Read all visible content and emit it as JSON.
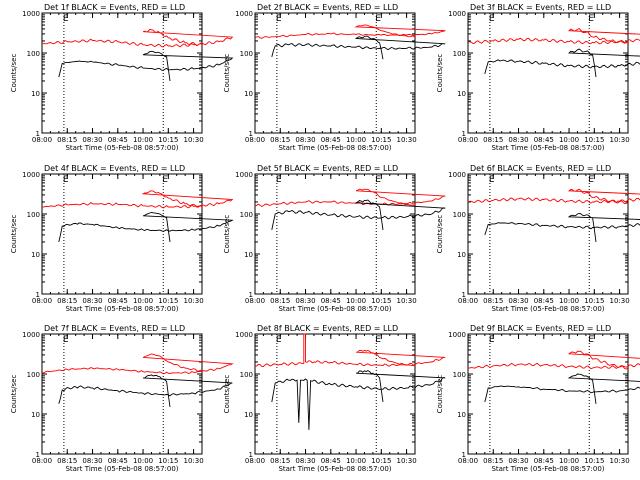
{
  "figure": {
    "background": "#ffffff",
    "axis_color": "#000000"
  },
  "chart_data": [
    {
      "type": "line",
      "title": "Det 1f BLACK = Events, RED = LLD",
      "xlabel": "Start Time (05-Feb-08 08:57:00)",
      "ylabel": "Counts/sec",
      "xlim": [
        "08:00",
        "10:35"
      ],
      "ylim": [
        1,
        1000
      ],
      "yscale": "log",
      "x_ticks": [
        "08:00",
        "08:15",
        "08:30",
        "08:45",
        "10:00",
        "10:15",
        "10:30"
      ],
      "y_ticks": [
        "1",
        "10",
        "100",
        "1000"
      ],
      "vlines": [
        "08:13",
        "10:12"
      ],
      "vline_labels": [
        "E",
        "E"
      ],
      "series": [
        {
          "name": "RED",
          "color": "#ff0000",
          "x": [
            "08:00",
            "08:15",
            "08:30",
            "08:45",
            "09:00",
            "09:15",
            "09:30",
            "09:45",
            "09:53",
            "10:00",
            "10:05",
            "10:10",
            "10:15",
            "10:25",
            "10:35"
          ],
          "values": [
            170,
            190,
            205,
            190,
            160,
            150,
            160,
            190,
            250,
            340,
            380,
            320,
            240,
            180,
            160
          ]
        },
        {
          "name": "BLACK",
          "color": "#000000",
          "x": [
            "08:10",
            "08:12",
            "08:20",
            "08:30",
            "08:45",
            "09:00",
            "09:15",
            "09:30",
            "09:45",
            "09:53",
            "10:00",
            "10:05",
            "10:10",
            "10:14",
            "10:16"
          ],
          "values": [
            25,
            55,
            62,
            60,
            50,
            42,
            38,
            40,
            50,
            75,
            90,
            110,
            100,
            80,
            20
          ]
        }
      ]
    },
    {
      "type": "line",
      "title": "Det 2f BLACK = Events, RED = LLD",
      "xlabel": "Start Time (05-Feb-08 08:57:00)",
      "ylabel": "Counts/sec",
      "xlim": [
        "08:00",
        "10:35"
      ],
      "ylim": [
        1,
        1000
      ],
      "yscale": "log",
      "x_ticks": [
        "08:00",
        "08:15",
        "08:30",
        "08:45",
        "10:00",
        "10:15",
        "10:30"
      ],
      "y_ticks": [
        "1",
        "10",
        "100",
        "1000"
      ],
      "vlines": [
        "08:13",
        "10:12"
      ],
      "vline_labels": [
        "E",
        "E"
      ],
      "series": [
        {
          "name": "RED",
          "color": "#ff0000",
          "x": [
            "08:00",
            "08:15",
            "08:30",
            "08:45",
            "09:00",
            "09:15",
            "09:30",
            "09:45",
            "09:53",
            "10:00",
            "10:05",
            "10:10",
            "10:15",
            "10:25",
            "10:35"
          ],
          "values": [
            240,
            260,
            290,
            300,
            290,
            280,
            280,
            300,
            360,
            450,
            500,
            450,
            360,
            280,
            250
          ]
        },
        {
          "name": "BLACK",
          "color": "#000000",
          "x": [
            "08:10",
            "08:12",
            "08:20",
            "08:30",
            "08:45",
            "09:00",
            "09:15",
            "09:30",
            "09:45",
            "09:53",
            "10:00",
            "10:05",
            "10:10",
            "10:14",
            "10:16"
          ],
          "values": [
            80,
            150,
            160,
            160,
            150,
            140,
            130,
            130,
            140,
            170,
            230,
            260,
            230,
            180,
            70
          ]
        }
      ]
    },
    {
      "type": "line",
      "title": "Det 3f BLACK = Events, RED = LLD",
      "xlabel": "Start Time (05-Feb-08 08:57:00)",
      "ylabel": "Counts/sec",
      "xlim": [
        "08:00",
        "10:35"
      ],
      "ylim": [
        1,
        1000
      ],
      "yscale": "log",
      "x_ticks": [
        "08:00",
        "08:15",
        "08:30",
        "08:45",
        "10:00",
        "10:15",
        "10:30"
      ],
      "y_ticks": [
        "1",
        "10",
        "100",
        "1000"
      ],
      "vlines": [
        "08:13",
        "10:12"
      ],
      "vline_labels": [
        "E",
        "E"
      ],
      "series": [
        {
          "name": "RED",
          "color": "#ff0000",
          "x": [
            "08:00",
            "08:15",
            "08:30",
            "08:45",
            "09:00",
            "09:15",
            "09:30",
            "09:45",
            "09:53",
            "10:00",
            "10:05",
            "10:10",
            "10:15",
            "10:25",
            "10:35"
          ],
          "values": [
            180,
            200,
            220,
            210,
            190,
            180,
            190,
            220,
            280,
            360,
            390,
            330,
            250,
            200,
            180
          ]
        },
        {
          "name": "BLACK",
          "color": "#000000",
          "x": [
            "08:10",
            "08:12",
            "08:20",
            "08:30",
            "08:45",
            "09:00",
            "09:15",
            "09:30",
            "09:45",
            "09:53",
            "10:00",
            "10:05",
            "10:10",
            "10:14",
            "10:16"
          ],
          "values": [
            30,
            60,
            65,
            62,
            55,
            48,
            45,
            48,
            58,
            80,
            100,
            120,
            110,
            90,
            25
          ]
        }
      ]
    },
    {
      "type": "line",
      "title": "Det 4f BLACK = Events, RED = LLD",
      "xlabel": "Start Time (05-Feb-08 08:57:00)",
      "ylabel": "Counts/sec",
      "xlim": [
        "08:00",
        "10:35"
      ],
      "ylim": [
        1,
        1000
      ],
      "yscale": "log",
      "x_ticks": [
        "08:00",
        "08:15",
        "08:30",
        "08:45",
        "10:00",
        "10:15",
        "10:30"
      ],
      "y_ticks": [
        "1",
        "10",
        "100",
        "1000"
      ],
      "vlines": [
        "08:13",
        "10:12"
      ],
      "vline_labels": [
        "E",
        "E"
      ],
      "series": [
        {
          "name": "RED",
          "color": "#ff0000",
          "x": [
            "08:00",
            "08:15",
            "08:30",
            "08:45",
            "09:00",
            "09:15",
            "09:30",
            "09:45",
            "09:53",
            "10:00",
            "10:05",
            "10:10",
            "10:15",
            "10:25",
            "10:35"
          ],
          "values": [
            150,
            170,
            180,
            175,
            160,
            150,
            155,
            180,
            230,
            320,
            380,
            330,
            250,
            180,
            150
          ]
        },
        {
          "name": "BLACK",
          "color": "#000000",
          "x": [
            "08:10",
            "08:12",
            "08:20",
            "08:30",
            "08:45",
            "09:00",
            "09:15",
            "09:30",
            "09:45",
            "09:53",
            "10:00",
            "10:05",
            "10:10",
            "10:14",
            "10:16"
          ],
          "values": [
            20,
            50,
            58,
            55,
            45,
            40,
            38,
            40,
            50,
            70,
            90,
            110,
            100,
            80,
            20
          ]
        }
      ]
    },
    {
      "type": "line",
      "title": "Det 5f BLACK = Events, RED = LLD",
      "xlabel": "Start Time (05-Feb-08 08:57:00)",
      "ylabel": "Counts/sec",
      "xlim": [
        "08:00",
        "10:35"
      ],
      "ylim": [
        1,
        1000
      ],
      "yscale": "log",
      "x_ticks": [
        "08:00",
        "08:15",
        "08:30",
        "08:45",
        "10:00",
        "10:15",
        "10:30"
      ],
      "y_ticks": [
        "1",
        "10",
        "100",
        "1000"
      ],
      "vlines": [
        "08:13",
        "10:12"
      ],
      "vline_labels": [
        "E",
        "E"
      ],
      "series": [
        {
          "name": "RED",
          "color": "#ff0000",
          "x": [
            "08:00",
            "08:15",
            "08:30",
            "08:45",
            "09:00",
            "09:15",
            "09:30",
            "09:45",
            "09:53",
            "10:00",
            "10:05",
            "10:10",
            "10:15",
            "10:25",
            "10:35"
          ],
          "values": [
            160,
            180,
            200,
            200,
            185,
            175,
            180,
            210,
            280,
            380,
            420,
            360,
            260,
            190,
            160
          ]
        },
        {
          "name": "BLACK",
          "color": "#000000",
          "x": [
            "08:10",
            "08:12",
            "08:20",
            "08:30",
            "08:45",
            "09:00",
            "09:15",
            "09:30",
            "09:45",
            "09:53",
            "10:00",
            "10:05",
            "10:10",
            "10:14",
            "10:16"
          ],
          "values": [
            40,
            100,
            115,
            110,
            95,
            85,
            80,
            85,
            100,
            140,
            190,
            220,
            190,
            150,
            40
          ]
        }
      ]
    },
    {
      "type": "line",
      "title": "Det 6f BLACK = Events, RED = LLD",
      "xlabel": "Start Time (05-Feb-08 08:57:00)",
      "ylabel": "Counts/sec",
      "xlim": [
        "08:00",
        "10:35"
      ],
      "ylim": [
        1,
        1000
      ],
      "yscale": "log",
      "x_ticks": [
        "08:00",
        "08:15",
        "08:30",
        "08:45",
        "10:00",
        "10:15",
        "10:30"
      ],
      "y_ticks": [
        "1",
        "10",
        "100",
        "1000"
      ],
      "vlines": [
        "08:13",
        "10:12"
      ],
      "vline_labels": [
        "E",
        "E"
      ],
      "series": [
        {
          "name": "RED",
          "color": "#ff0000",
          "x": [
            "08:00",
            "08:15",
            "08:30",
            "08:45",
            "09:00",
            "09:15",
            "09:30",
            "09:45",
            "09:53",
            "10:00",
            "10:05",
            "10:10",
            "10:15",
            "10:25",
            "10:35"
          ],
          "values": [
            200,
            220,
            240,
            230,
            210,
            200,
            210,
            240,
            300,
            380,
            400,
            340,
            260,
            210,
            190
          ]
        },
        {
          "name": "BLACK",
          "color": "#000000",
          "x": [
            "08:10",
            "08:12",
            "08:20",
            "08:30",
            "08:45",
            "09:00",
            "09:15",
            "09:30",
            "09:45",
            "09:53",
            "10:00",
            "10:05",
            "10:10",
            "10:14",
            "10:16"
          ],
          "values": [
            30,
            55,
            60,
            58,
            52,
            48,
            46,
            48,
            56,
            70,
            85,
            100,
            95,
            80,
            20
          ]
        }
      ]
    },
    {
      "type": "line",
      "title": "Det 7f BLACK = Events, RED = LLD",
      "xlabel": "Start Time (05-Feb-08 08:57:00)",
      "ylabel": "Counts/sec",
      "xlim": [
        "08:00",
        "10:35"
      ],
      "ylim": [
        1,
        1000
      ],
      "yscale": "log",
      "x_ticks": [
        "08:00",
        "08:15",
        "08:30",
        "08:45",
        "10:00",
        "10:15",
        "10:30"
      ],
      "y_ticks": [
        "1",
        "10",
        "100",
        "1000"
      ],
      "vlines": [
        "08:13",
        "10:12"
      ],
      "vline_labels": [
        "E",
        "E"
      ],
      "series": [
        {
          "name": "RED",
          "color": "#ff0000",
          "x": [
            "08:00",
            "08:15",
            "08:30",
            "08:45",
            "09:00",
            "09:15",
            "09:30",
            "09:45",
            "09:53",
            "10:00",
            "10:05",
            "10:10",
            "10:15",
            "10:25",
            "10:35"
          ],
          "values": [
            110,
            130,
            140,
            130,
            115,
            105,
            110,
            135,
            180,
            260,
            320,
            280,
            200,
            140,
            120
          ]
        },
        {
          "name": "BLACK",
          "color": "#000000",
          "x": [
            "08:10",
            "08:12",
            "08:20",
            "08:30",
            "08:45",
            "09:00",
            "09:15",
            "09:30",
            "09:45",
            "09:53",
            "10:00",
            "10:05",
            "10:10",
            "10:14",
            "10:16"
          ],
          "values": [
            18,
            40,
            48,
            45,
            38,
            33,
            30,
            33,
            42,
            60,
            80,
            95,
            85,
            65,
            15
          ]
        }
      ]
    },
    {
      "type": "line",
      "title": "Det 8f BLACK = Events, RED = LLD",
      "xlabel": "Start Time (05-Feb-08 08:57:00)",
      "ylabel": "Counts/sec",
      "xlim": [
        "08:00",
        "10:35"
      ],
      "ylim": [
        1,
        1000
      ],
      "yscale": "log",
      "x_ticks": [
        "08:00",
        "08:15",
        "08:30",
        "08:45",
        "10:00",
        "10:15",
        "10:30"
      ],
      "y_ticks": [
        "1",
        "10",
        "100",
        "1000"
      ],
      "vlines": [
        "08:13",
        "10:12"
      ],
      "vline_labels": [
        "E",
        "E"
      ],
      "series": [
        {
          "name": "RED",
          "color": "#ff0000",
          "x": [
            "08:00",
            "08:15",
            "08:29",
            "08:29",
            "08:30",
            "08:30",
            "08:35",
            "08:45",
            "09:00",
            "09:15",
            "09:30",
            "09:45",
            "09:53",
            "10:00",
            "10:05",
            "10:10",
            "10:15",
            "10:25",
            "10:35"
          ],
          "values": [
            160,
            175,
            185,
            1000,
            1000,
            200,
            200,
            195,
            175,
            165,
            170,
            200,
            260,
            350,
            390,
            340,
            250,
            180,
            160
          ]
        },
        {
          "name": "BLACK",
          "color": "#000000",
          "x": [
            "08:10",
            "08:12",
            "08:20",
            "08:25",
            "08:26",
            "08:27",
            "08:28",
            "08:31",
            "08:32",
            "08:33",
            "08:45",
            "09:00",
            "09:15",
            "09:30",
            "09:45",
            "09:53",
            "10:00",
            "10:05",
            "10:10",
            "10:14",
            "10:16"
          ],
          "values": [
            20,
            60,
            70,
            70,
            6,
            70,
            70,
            70,
            4,
            68,
            55,
            48,
            42,
            45,
            55,
            80,
            105,
            120,
            105,
            80,
            20
          ]
        }
      ]
    },
    {
      "type": "line",
      "title": "Det 9f BLACK = Events, RED = LLD",
      "xlabel": "Start Time (05-Feb-08 08:57:00)",
      "ylabel": "Counts/sec",
      "xlim": [
        "08:00",
        "10:35"
      ],
      "ylim": [
        1,
        1000
      ],
      "yscale": "log",
      "x_ticks": [
        "08:00",
        "08:15",
        "08:30",
        "08:45",
        "10:00",
        "10:15",
        "10:30"
      ],
      "y_ticks": [
        "1",
        "10",
        "100",
        "1000"
      ],
      "vlines": [
        "08:13",
        "10:12"
      ],
      "vline_labels": [
        "E",
        "E"
      ],
      "series": [
        {
          "name": "RED",
          "color": "#ff0000",
          "x": [
            "08:00",
            "08:15",
            "08:30",
            "08:45",
            "09:00",
            "09:15",
            "09:30",
            "09:45",
            "09:53",
            "10:00",
            "10:05",
            "10:10",
            "10:15",
            "10:25",
            "10:35"
          ],
          "values": [
            140,
            160,
            175,
            170,
            155,
            145,
            150,
            175,
            230,
            320,
            370,
            320,
            240,
            170,
            140
          ]
        },
        {
          "name": "BLACK",
          "color": "#000000",
          "x": [
            "08:10",
            "08:12",
            "08:20",
            "08:30",
            "08:45",
            "09:00",
            "09:15",
            "09:30",
            "09:45",
            "09:53",
            "10:00",
            "10:05",
            "10:10",
            "10:14",
            "10:16"
          ],
          "values": [
            20,
            45,
            50,
            48,
            42,
            38,
            36,
            38,
            46,
            62,
            80,
            100,
            90,
            70,
            18
          ]
        }
      ]
    }
  ]
}
